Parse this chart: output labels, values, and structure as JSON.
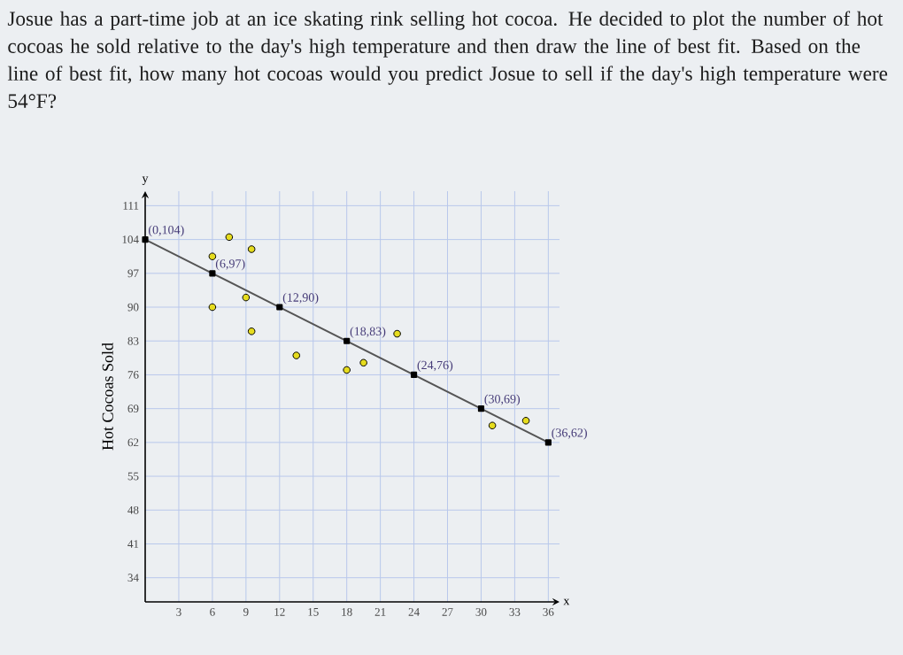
{
  "chart_data": {
    "type": "scatter",
    "title": "Josue has a part-time job at an ice skating rink selling hot cocoa. He decided to plot the number of hot cocoas he sold relative to the day's high temperature and then draw the line of best fit. Based on the line of best fit, how many hot cocoas would you predict Josue to sell if the day's high temperature were 54°F?",
    "xlabel": "x",
    "ylabel": "Hot Cocoas Sold",
    "series": [
      {
        "color": "#e6dc1e",
        "marker": "circle",
        "x": [
          6,
          7.5,
          9.5,
          6,
          9,
          9.5,
          13.5,
          18,
          19.5,
          22.5,
          31,
          34
        ],
        "values": [
          100.5,
          104.5,
          102,
          90,
          92,
          85,
          80,
          77,
          78.5,
          84.5,
          65.5,
          66.5
        ]
      },
      {
        "type": "line",
        "color": "#555555",
        "marker": "square",
        "x": [
          0,
          6,
          12,
          18,
          24,
          30,
          36
        ],
        "values": [
          104,
          97,
          90,
          83,
          76,
          69,
          62
        ]
      }
    ],
    "xlim": [
      0,
      37
    ],
    "ylim": [
      29,
      114
    ],
    "xticks": [
      3,
      6,
      9,
      12,
      15,
      18,
      21,
      24,
      27,
      30,
      33,
      36
    ],
    "yticks": [
      34,
      41,
      48,
      55,
      62,
      69,
      76,
      83,
      90,
      97,
      104,
      111
    ],
    "grid": true,
    "annotations": [
      "y",
      {
        "text": "(0,104)",
        "x": 0,
        "y": 104
      },
      {
        "text": "(6,97)",
        "x": 6,
        "y": 97
      },
      {
        "text": "(12,90)",
        "x": 12,
        "y": 90
      },
      {
        "text": "(18,83)",
        "x": 18,
        "y": 83
      },
      {
        "text": "(24,76)",
        "x": 24,
        "y": 76
      },
      {
        "text": "(30,69)",
        "x": 30,
        "y": 69
      },
      {
        "text": "(36,62)",
        "x": 36,
        "y": 62
      }
    ]
  }
}
